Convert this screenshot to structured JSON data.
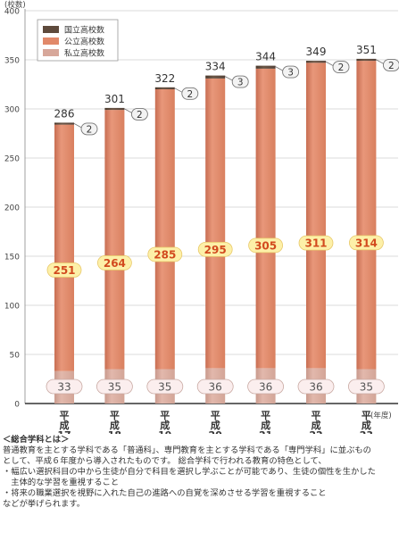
{
  "chart_data": {
    "type": "bar",
    "stacked": true,
    "y_unit_label": "(校数)",
    "x_unit_label": "(年度)",
    "ylim": [
      0,
      400
    ],
    "yticks": [
      0,
      50,
      100,
      150,
      200,
      250,
      300,
      350,
      400
    ],
    "categories": [
      "平成17",
      "平成18",
      "平成19",
      "平成20",
      "平成21",
      "平成22",
      "平成23"
    ],
    "category_labels": [
      [
        "平",
        "成",
        "17"
      ],
      [
        "平",
        "成",
        "18"
      ],
      [
        "平",
        "成",
        "19"
      ],
      [
        "平",
        "成",
        "20"
      ],
      [
        "平",
        "成",
        "21"
      ],
      [
        "平",
        "成",
        "22"
      ],
      [
        "平",
        "成",
        "23"
      ]
    ],
    "series": [
      {
        "name": "私立高校数",
        "color": "#d7a79a",
        "values": [
          33,
          35,
          35,
          36,
          36,
          36,
          35
        ]
      },
      {
        "name": "公立高校数",
        "color": "#e1896a",
        "values": [
          251,
          264,
          285,
          295,
          305,
          311,
          314
        ]
      },
      {
        "name": "国立高校数",
        "color": "#5e4a3c",
        "values": [
          2,
          2,
          2,
          3,
          3,
          2,
          2
        ]
      }
    ],
    "totals": [
      286,
      301,
      322,
      334,
      344,
      349,
      351
    ],
    "legend": {
      "position": "top-left",
      "order": [
        "国立高校数",
        "公立高校数",
        "私立高校数"
      ]
    }
  },
  "notes": {
    "heading": "＜総合学科とは＞",
    "lines": [
      "普通教育を主とする学科である「普通科」、専門教育を主とする学科である「専門学科」に並ぶもの",
      "として、平成６年度から導入されたものです。 総合学科で行われる教育の特色として、",
      "・幅広い選択科目の中から生徒が自分で科目を選択し学ぶことが可能であり、生徒の個性を生かした",
      "　主体的な学習を重視すること",
      "・将来の職業選択を視野に入れた自己の進路への自覚を深めさせる学習を重視すること",
      "などが挙げられます。"
    ]
  }
}
